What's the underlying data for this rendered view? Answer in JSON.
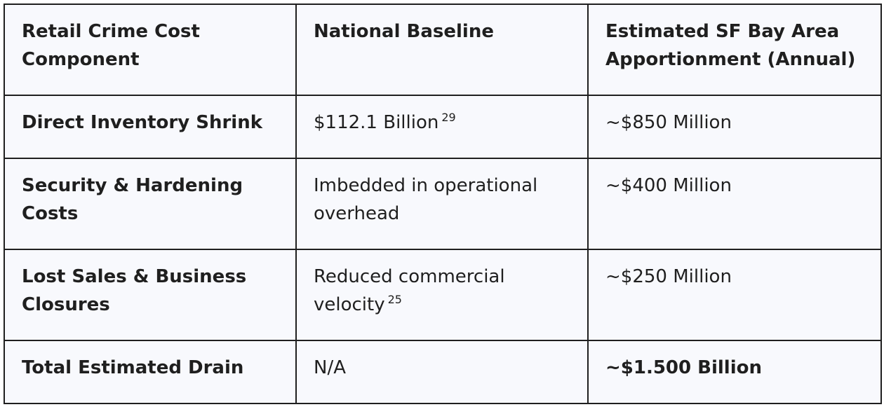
{
  "table": {
    "headers": [
      "Retail Crime Cost Component",
      "National Baseline",
      "Estimated SF Bay Area Apportionment (Annual)"
    ],
    "rows": [
      {
        "component": "Direct Inventory Shrink",
        "baseline": "$112.1 Billion",
        "baseline_ref": "29",
        "estimate": "~$850 Million"
      },
      {
        "component": "Security & Hardening Costs",
        "baseline": "Imbedded in operational overhead",
        "baseline_ref": "",
        "estimate": "~$400 Million"
      },
      {
        "component": "Lost Sales & Business Closures",
        "baseline": "Reduced commercial velocity",
        "baseline_ref": "25",
        "estimate": "~$250 Million"
      },
      {
        "component": "Total Estimated Drain",
        "baseline": "N/A",
        "baseline_ref": "",
        "estimate": "~$1.500 Billion"
      }
    ]
  }
}
